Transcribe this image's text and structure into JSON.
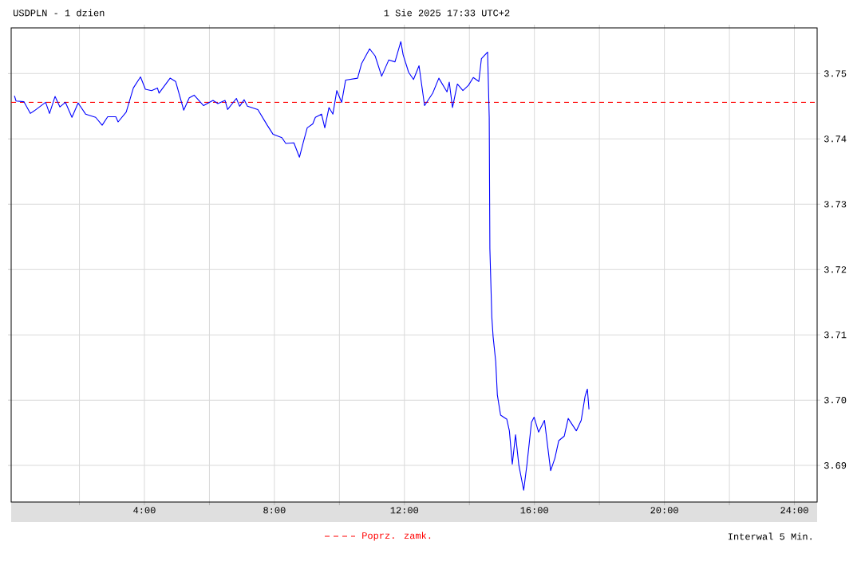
{
  "chart_data": {
    "type": "line",
    "title": "USDPLN - 1 dzien",
    "subtitle": "1 Sie 2025 17:33 UTC+2",
    "annotations": [
      "Interwal 5 Min."
    ],
    "xlim": [
      -0.1,
      24.7
    ],
    "xticks": [
      {
        "value": 2,
        "label": null
      },
      {
        "value": 4,
        "label": "4:00"
      },
      {
        "value": 6,
        "label": null
      },
      {
        "value": 8,
        "label": "8:00"
      },
      {
        "value": 10,
        "label": null
      },
      {
        "value": 12,
        "label": "12:00"
      },
      {
        "value": 14,
        "label": null
      },
      {
        "value": 16,
        "label": "16:00"
      },
      {
        "value": 18,
        "label": null
      },
      {
        "value": 20,
        "label": "20:00"
      },
      {
        "value": 22,
        "label": null
      },
      {
        "value": 24,
        "label": "24:00"
      }
    ],
    "ylim": [
      3.6844,
      3.757
    ],
    "yticks": [
      3.69,
      {
        "value": 3.7,
        "label": "3.70"
      },
      3.71,
      3.72,
      3.73,
      3.74,
      3.75
    ],
    "grid": true,
    "ref_lines": [
      {
        "axis": "y",
        "value": 3.7456,
        "label": "Poprz. zamk.",
        "color": "#ff0000",
        "line_style": "dashed"
      }
    ],
    "x": [
      0.0,
      0.05,
      0.29,
      0.49,
      0.61,
      0.96,
      1.08,
      1.25,
      1.4,
      1.57,
      1.77,
      1.96,
      2.19,
      2.5,
      2.7,
      2.87,
      3.12,
      3.19,
      3.44,
      3.66,
      3.88,
      4.03,
      4.22,
      4.4,
      4.45,
      4.79,
      4.96,
      5.21,
      5.38,
      5.53,
      5.82,
      6.11,
      6.26,
      6.48,
      6.56,
      6.83,
      6.93,
      7.07,
      7.17,
      7.49,
      7.78,
      7.96,
      8.23,
      8.35,
      8.6,
      8.77,
      8.89,
      9.01,
      9.18,
      9.26,
      9.45,
      9.55,
      9.68,
      9.8,
      9.92,
      10.07,
      10.19,
      10.56,
      10.68,
      10.93,
      11.1,
      11.3,
      11.52,
      11.71,
      11.89,
      11.96,
      12.13,
      12.28,
      12.45,
      12.62,
      12.87,
      13.06,
      13.31,
      13.38,
      13.48,
      13.63,
      13.8,
      13.97,
      14.12,
      14.29,
      14.37,
      14.56,
      14.61,
      14.63,
      14.69,
      14.73,
      14.81,
      14.86,
      14.96,
      15.15,
      15.23,
      15.32,
      15.42,
      15.52,
      15.67,
      15.77,
      15.91,
      15.99,
      16.13,
      16.31,
      16.5,
      16.63,
      16.75,
      16.92,
      17.04,
      17.29,
      17.44,
      17.56,
      17.63,
      17.68
    ],
    "series": [
      {
        "color": "#0000ff",
        "values": [
          3.7466,
          3.7458,
          3.7457,
          3.7439,
          3.7443,
          3.7456,
          3.7439,
          3.7465,
          3.7449,
          3.7456,
          3.7433,
          3.7455,
          3.7438,
          3.7433,
          3.7421,
          3.7434,
          3.7434,
          3.7426,
          3.7441,
          3.7478,
          3.7495,
          3.7476,
          3.7474,
          3.7478,
          3.747,
          3.7493,
          3.7488,
          3.7444,
          3.7463,
          3.7467,
          3.7451,
          3.7459,
          3.7454,
          3.7459,
          3.7445,
          3.7462,
          3.745,
          3.746,
          3.745,
          3.7445,
          3.7421,
          3.7407,
          3.7402,
          3.7393,
          3.7394,
          3.7372,
          3.7395,
          3.7417,
          3.7423,
          3.7433,
          3.7438,
          3.7417,
          3.7448,
          3.7438,
          3.7474,
          3.7456,
          3.749,
          3.7493,
          3.7515,
          3.7538,
          3.7527,
          3.7496,
          3.7521,
          3.7518,
          3.7549,
          3.7529,
          3.7502,
          3.7491,
          3.7512,
          3.7451,
          3.747,
          3.7493,
          3.7472,
          3.7487,
          3.7448,
          3.7484,
          3.7474,
          3.7482,
          3.7494,
          3.7488,
          3.7523,
          3.7533,
          3.7433,
          3.7232,
          3.7127,
          3.7097,
          3.7059,
          3.7008,
          3.6977,
          3.6971,
          3.6953,
          3.6902,
          3.6947,
          3.6901,
          3.6862,
          3.6901,
          3.6966,
          3.6974,
          3.6951,
          3.6969,
          3.6892,
          3.6911,
          3.6938,
          3.6945,
          3.6972,
          3.6953,
          3.6969,
          3.7006,
          3.7017,
          3.6986
        ]
      }
    ]
  }
}
